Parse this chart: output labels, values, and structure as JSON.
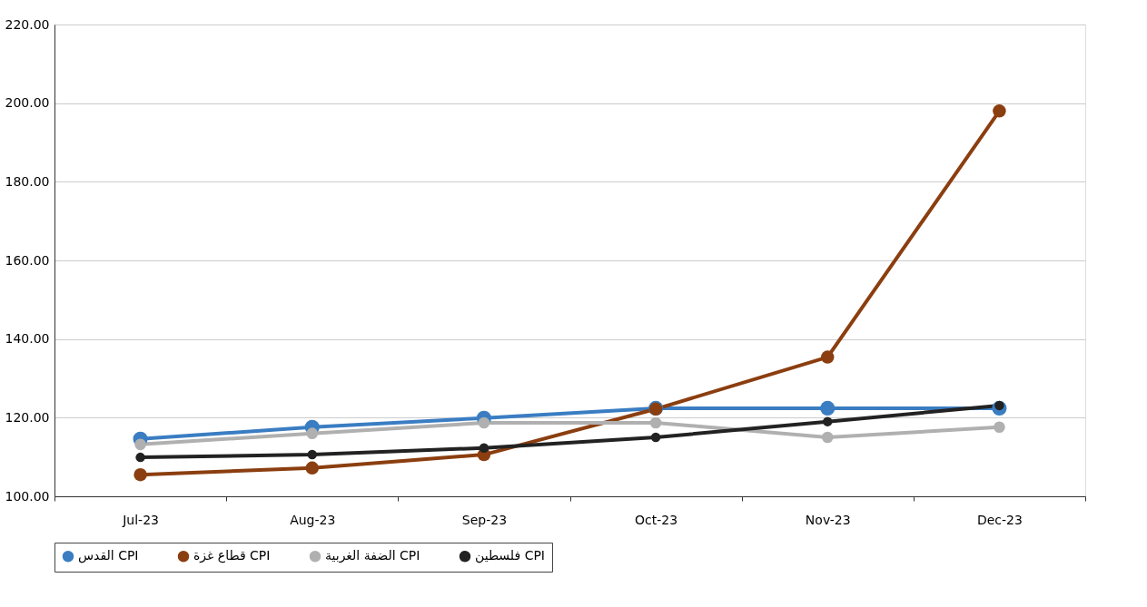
{
  "chart_data": {
    "type": "line",
    "categories": [
      "Jul-23",
      "Aug-23",
      "Sep-23",
      "Oct-23",
      "Nov-23",
      "Dec-23"
    ],
    "series": [
      {
        "name": "القدس CPI",
        "color": "#3a7dc2",
        "values": [
          114.6,
          117.6,
          119.9,
          122.4,
          122.4,
          122.4
        ]
      },
      {
        "name": "قطاع غزة CPI",
        "color": "#8b3e0f",
        "values": [
          105.5,
          107.2,
          110.6,
          122.2,
          135.4,
          198.0
        ]
      },
      {
        "name": "الضفة الغربية CPI",
        "color": "#b0b0b0",
        "values": [
          113.2,
          116.0,
          118.7,
          118.7,
          115.0,
          117.6
        ]
      },
      {
        "name": "فلسطين CPI",
        "color": "#222222",
        "values": [
          109.9,
          110.6,
          112.3,
          115.0,
          119.0,
          123.1
        ]
      }
    ],
    "ylim": [
      100,
      220
    ],
    "yticks": [
      {
        "value": 100,
        "label": "100.00"
      },
      {
        "value": 120,
        "label": "120.00"
      },
      {
        "value": 140,
        "label": "140.00"
      },
      {
        "value": 160,
        "label": "160.00"
      },
      {
        "value": 180,
        "label": "180.00"
      },
      {
        "value": 200,
        "label": "200.00"
      },
      {
        "value": 220,
        "label": "220.00"
      }
    ],
    "grid": "y",
    "legend": "bottom",
    "marker": "circle",
    "line_style": "solid"
  }
}
